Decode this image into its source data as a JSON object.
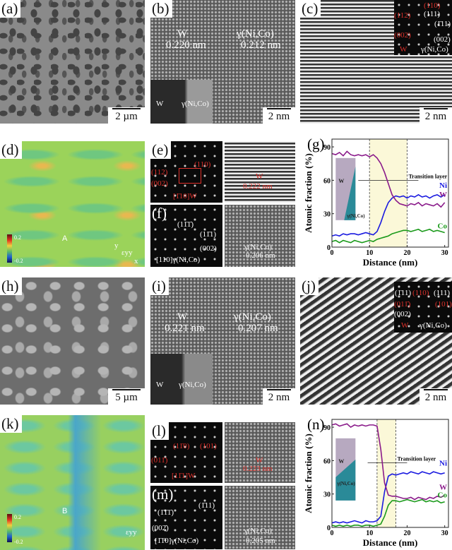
{
  "panels": {
    "a": {
      "label": "(a)",
      "scale": "2 µm"
    },
    "b": {
      "label": "(b)",
      "scale": "2 nm",
      "w_label": "W",
      "w_d": "0.220 nm",
      "g_label": "γ(Ni,Co)",
      "g_d": "0.212 nm",
      "inset_w": "W",
      "inset_g": "γ(Ni,Co)"
    },
    "c": {
      "label": "(c)",
      "scale": "2 nm",
      "spots": {
        "w110": "(110)",
        "w112": "(112)",
        "w002": "(002)",
        "g111a": "(111)",
        "g111b": "(1̄11)",
        "g002": "(002)",
        "w": "W",
        "g": "γ(Ni,Co)"
      }
    },
    "d": {
      "label": "(d)",
      "point": "A",
      "cbar_max": "0.2",
      "cbar_min": "-0.2",
      "axis_y": "y",
      "axis_x": "x",
      "strain": "εyy"
    },
    "e": {
      "label": "(e)",
      "s1": "(112)",
      "s2": "(110)",
      "s3": "(002)",
      "zone": "[1̄10]W",
      "phase": "W",
      "d": "0.222 nm"
    },
    "f": {
      "label": "(f)",
      "s1": "(11̄1̄)",
      "s2": "(11̄1)",
      "s3": "(002)",
      "zone": "[110]γ(Ni,Co)",
      "phase": "γ(Ni,Co)",
      "d": "0.206 nm"
    },
    "h": {
      "label": "(h)",
      "scale": "5 µm"
    },
    "i": {
      "label": "(i)",
      "scale": "2 nm",
      "w_label": "W",
      "w_d": "0.221 nm",
      "g_label": "γ(Ni,Co)",
      "g_d": "0.207 nm",
      "inset_w": "W",
      "inset_g": "γ(Ni,Co)"
    },
    "j": {
      "label": "(j)",
      "scale": "2 nm",
      "spots": {
        "g111a": "(1̄11)",
        "w110": "(110)",
        "g111b": "(111)",
        "w011": "(011̄)",
        "w101": "(101)",
        "g002": "(002)",
        "w": "W",
        "g": "γ(Ni,Co)"
      }
    },
    "k": {
      "label": "(k)",
      "point": "B",
      "cbar_max": "0.2",
      "cbar_min": "-0.2",
      "strain": "εyy"
    },
    "l": {
      "label": "(l)",
      "s1": "(11̄0)",
      "s2": "(101)",
      "s3": "(011̄)",
      "zone": "[11̄1]W",
      "phase": "W",
      "d": "0.223 nm"
    },
    "m": {
      "label": "(m)",
      "s1": "(1̄1̄1̄)",
      "s2": "(1̄11)",
      "s3": "(002̄)",
      "zone": "[1̄1̄0]γ(Ni,Co)",
      "phase": "γ(Ni,Co)",
      "d": "0.205 nm"
    }
  },
  "chart_data": [
    {
      "type": "line",
      "label": "(g)",
      "xlabel": "Distance (nm)",
      "ylabel": "Atomic fraction (%)",
      "xlim": [
        0,
        31
      ],
      "ylim": [
        0,
        97
      ],
      "xticks": [
        0,
        10,
        20,
        30
      ],
      "yticks": [
        0,
        30,
        60,
        90
      ],
      "transition": [
        10,
        20
      ],
      "annotation": "Transition layer",
      "inset_w": "W",
      "inset_g": "γ(Ni,Co)",
      "x": [
        0,
        1,
        2,
        3,
        4,
        5,
        6,
        7,
        8,
        9,
        10,
        11,
        12,
        13,
        14,
        15,
        16,
        17,
        18,
        19,
        20,
        21,
        22,
        23,
        24,
        25,
        26,
        27,
        28,
        29,
        30
      ],
      "series": [
        {
          "name": "Ni",
          "color": "#1a1ae0",
          "values": [
            10,
            11,
            10,
            12,
            11,
            12,
            12,
            11,
            12,
            13,
            12,
            11,
            14,
            22,
            32,
            40,
            44,
            46,
            45,
            46,
            44,
            46,
            45,
            47,
            45,
            46,
            44,
            46,
            47,
            45,
            47
          ]
        },
        {
          "name": "W",
          "color": "#8a1a8a",
          "values": [
            84,
            83,
            85,
            82,
            86,
            83,
            82,
            83,
            82,
            83,
            81,
            83,
            80,
            75,
            67,
            57,
            47,
            42,
            39,
            38,
            37,
            39,
            38,
            40,
            37,
            39,
            38,
            37,
            39,
            36,
            40
          ]
        },
        {
          "name": "Co",
          "color": "#1a9a1a",
          "values": [
            5,
            6,
            4,
            6,
            5,
            4,
            6,
            5,
            4,
            5,
            6,
            5,
            7,
            8,
            9,
            10,
            12,
            13,
            14,
            15,
            15,
            14,
            15,
            16,
            14,
            15,
            16,
            14,
            15,
            14,
            13
          ]
        }
      ]
    },
    {
      "type": "line",
      "label": "(n)",
      "xlabel": "Distance (nm)",
      "ylabel": "Atomic fraction (%)",
      "xlim": [
        0,
        31
      ],
      "ylim": [
        0,
        97
      ],
      "xticks": [
        0,
        10,
        20,
        30
      ],
      "yticks": [
        0,
        30,
        60,
        90
      ],
      "transition": [
        12,
        17
      ],
      "annotation": "Transition layer",
      "inset_w": "W",
      "inset_g": "γ(Ni,Co)",
      "x": [
        0,
        1,
        2,
        3,
        4,
        5,
        6,
        7,
        8,
        9,
        10,
        11,
        12,
        13,
        14,
        15,
        16,
        17,
        18,
        19,
        20,
        21,
        22,
        23,
        24,
        25,
        26,
        27,
        28,
        29,
        30
      ],
      "series": [
        {
          "name": "Ni",
          "color": "#1a1ae0",
          "values": [
            4,
            5,
            4,
            5,
            4,
            5,
            6,
            5,
            4,
            6,
            5,
            5,
            6,
            10,
            32,
            46,
            48,
            47,
            48,
            49,
            48,
            50,
            49,
            48,
            50,
            49,
            48,
            50,
            49,
            48,
            49
          ]
        },
        {
          "name": "W",
          "color": "#8a1a8a",
          "values": [
            92,
            93,
            91,
            92,
            93,
            90,
            92,
            91,
            92,
            91,
            92,
            92,
            91,
            70,
            40,
            29,
            28,
            28,
            27,
            26,
            26,
            27,
            25,
            27,
            26,
            25,
            27,
            26,
            28,
            27,
            29
          ]
        },
        {
          "name": "Co",
          "color": "#1a9a1a",
          "values": [
            2,
            1,
            2,
            1,
            2,
            1,
            2,
            2,
            1,
            2,
            2,
            1,
            2,
            3,
            10,
            20,
            24,
            24,
            23,
            24,
            25,
            24,
            23,
            24,
            25,
            23,
            24,
            23,
            24,
            22,
            23
          ]
        }
      ]
    }
  ]
}
